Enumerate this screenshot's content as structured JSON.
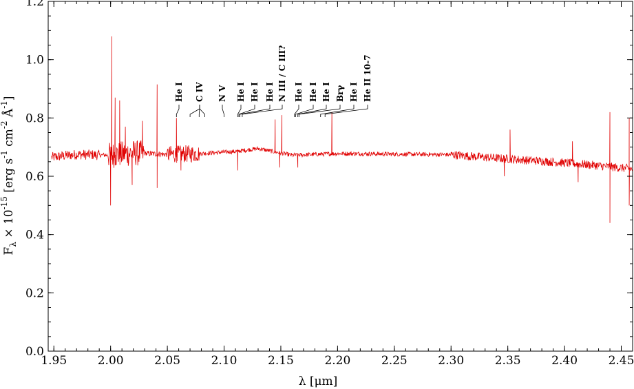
{
  "chart_data": {
    "type": "line",
    "title": "",
    "xlabel": "λ [μm]",
    "ylabel_parts": {
      "prefix": "F",
      "sub": "λ",
      "times": " × 10",
      "exp": "-15",
      "units_a": " [erg s",
      "exp_a": "-1",
      "units_b": " cm",
      "exp_b": "-2",
      "units_c": " Å",
      "exp_c": "-1",
      "units_d": "]"
    },
    "xlim": [
      1.945,
      2.46
    ],
    "ylim": [
      0.0,
      1.2
    ],
    "x_ticks": [
      "1.95",
      "2.00",
      "2.05",
      "2.10",
      "2.15",
      "2.20",
      "2.25",
      "2.30",
      "2.35",
      "2.40",
      "2.45"
    ],
    "y_ticks": [
      "0.0",
      "0.2",
      "0.4",
      "0.6",
      "0.8",
      "1.0",
      "1.2"
    ],
    "grid": false,
    "series": [
      {
        "color": "#e00000",
        "continuum": [
          [
            1.948,
            0.665
          ],
          [
            1.97,
            0.675
          ],
          [
            2.0,
            0.672
          ],
          [
            2.02,
            0.68
          ],
          [
            2.05,
            0.675
          ],
          [
            2.08,
            0.678
          ],
          [
            2.11,
            0.685
          ],
          [
            2.13,
            0.695
          ],
          [
            2.16,
            0.672
          ],
          [
            2.2,
            0.678
          ],
          [
            2.25,
            0.676
          ],
          [
            2.3,
            0.674
          ],
          [
            2.34,
            0.662
          ],
          [
            2.38,
            0.652
          ],
          [
            2.42,
            0.64
          ],
          [
            2.46,
            0.625
          ]
        ],
        "spikes": [
          [
            2.001,
            1.08
          ],
          [
            2.0,
            0.5
          ],
          [
            2.001,
            0.96
          ],
          [
            2.004,
            0.87
          ],
          [
            2.008,
            0.86
          ],
          [
            2.013,
            0.77
          ],
          [
            2.019,
            0.57
          ],
          [
            2.028,
            0.79
          ],
          [
            2.041,
            0.915
          ],
          [
            2.041,
            0.56
          ],
          [
            2.058,
            0.8
          ],
          [
            2.062,
            0.62
          ],
          [
            2.112,
            0.62
          ],
          [
            2.145,
            0.795
          ],
          [
            2.151,
            0.81
          ],
          [
            2.149,
            0.63
          ],
          [
            2.195,
            0.82
          ],
          [
            2.165,
            0.63
          ],
          [
            2.352,
            0.76
          ],
          [
            2.347,
            0.6
          ],
          [
            2.407,
            0.72
          ],
          [
            2.412,
            0.58
          ],
          [
            2.44,
            0.82
          ],
          [
            2.44,
            0.44
          ],
          [
            2.457,
            0.8
          ],
          [
            2.457,
            0.5
          ]
        ]
      }
    ],
    "line_ids": [
      {
        "label": "He I",
        "x": [
          2.058
        ]
      },
      {
        "label": "C IV",
        "x": [
          2.07,
          2.078,
          2.083
        ]
      },
      {
        "label": "N V",
        "x": [
          2.1
        ]
      },
      {
        "label": "He I",
        "x": [
          2.112
        ]
      },
      {
        "label": "He I",
        "x": [
          2.113
        ]
      },
      {
        "label": "He I",
        "x": [
          2.114
        ]
      },
      {
        "label": "N III / C III?",
        "x": [
          2.116
        ]
      },
      {
        "label": "He I",
        "x": [
          2.162
        ]
      },
      {
        "label": "He I",
        "x": [
          2.163
        ]
      },
      {
        "label": "He I",
        "x": [
          2.165
        ]
      },
      {
        "label": "Brγ",
        "x": [
          2.166
        ]
      },
      {
        "label": "He I",
        "x": [
          2.185
        ]
      },
      {
        "label": "He II 10-7",
        "x": [
          2.189
        ]
      }
    ]
  }
}
